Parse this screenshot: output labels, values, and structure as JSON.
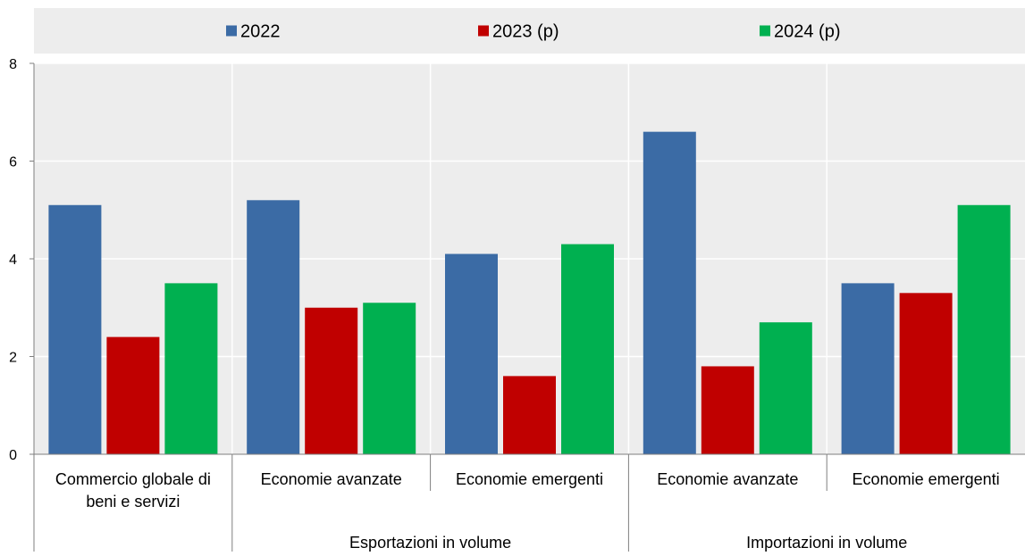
{
  "chart_data": {
    "type": "bar",
    "title": "",
    "xlabel": "",
    "ylabel": "",
    "ylim": [
      0,
      8
    ],
    "yticks": [
      0,
      2,
      4,
      6,
      8
    ],
    "grid": true,
    "legend_position": "top",
    "categories": [
      "Commercio globale di beni e servizi",
      "Economie avanzate",
      "Economie emergenti",
      "Economie avanzate",
      "Economie emergenti"
    ],
    "category_lines": [
      [
        "Commercio globale di",
        "beni e servizi"
      ],
      [
        "Economie avanzate"
      ],
      [
        "Economie emergenti"
      ],
      [
        "Economie avanzate"
      ],
      [
        "Economie emergenti"
      ]
    ],
    "groups": [
      {
        "label": "",
        "categories": [
          0
        ]
      },
      {
        "label": "Esportazioni in volume",
        "categories": [
          1,
          2
        ]
      },
      {
        "label": "Importazioni in volume",
        "categories": [
          3,
          4
        ]
      }
    ],
    "series": [
      {
        "name": "2022",
        "color": "#3B6BA5",
        "values": [
          5.1,
          5.2,
          4.1,
          6.6,
          3.5
        ]
      },
      {
        "name": "2023 (p)",
        "color": "#C00000",
        "values": [
          2.4,
          3.0,
          1.6,
          1.8,
          3.3
        ]
      },
      {
        "name": "2024 (p)",
        "color": "#00B050",
        "values": [
          3.5,
          3.1,
          4.3,
          2.7,
          5.1
        ]
      }
    ],
    "colors": {
      "plot_background": "#EDEDED",
      "legend_background": "#EDEDED",
      "gridline": "#FFFFFF",
      "axis": "#7F7F7F"
    }
  }
}
